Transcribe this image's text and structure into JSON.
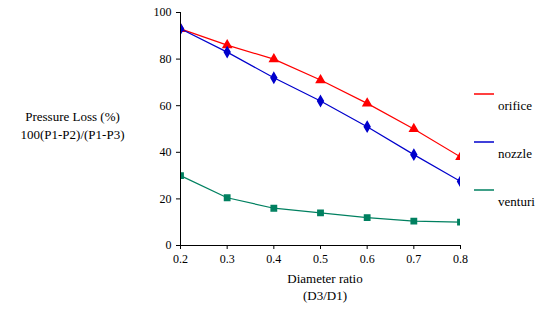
{
  "chart_data": {
    "type": "line",
    "ylabel": "Pressure Loss (%)\n100(P1-P2)/(P1-P3)",
    "xlabel": "Diameter ratio\n(D3/D1)",
    "x": [
      0.2,
      0.3,
      0.4,
      0.5,
      0.6,
      0.7,
      0.8
    ],
    "series": [
      {
        "name": "orifice",
        "color": "#ff0000",
        "marker": "triangle",
        "values": [
          93,
          86,
          80,
          71,
          61,
          50,
          38
        ]
      },
      {
        "name": "nozzle",
        "color": "#0000cc",
        "marker": "diamond",
        "values": [
          93,
          83,
          72,
          62,
          51,
          39,
          27.5
        ]
      },
      {
        "name": "venturi",
        "color": "#008060",
        "marker": "square",
        "values": [
          30,
          20.5,
          16,
          14,
          12,
          10.5,
          10
        ]
      }
    ],
    "xlim": [
      0.2,
      0.8
    ],
    "xticks": [
      0.2,
      0.3,
      0.4,
      0.5,
      0.6,
      0.7,
      0.8
    ],
    "ylim": [
      0,
      100
    ],
    "yticks": [
      0,
      20,
      40,
      60,
      80,
      100
    ],
    "grid": false,
    "legend": "right"
  }
}
